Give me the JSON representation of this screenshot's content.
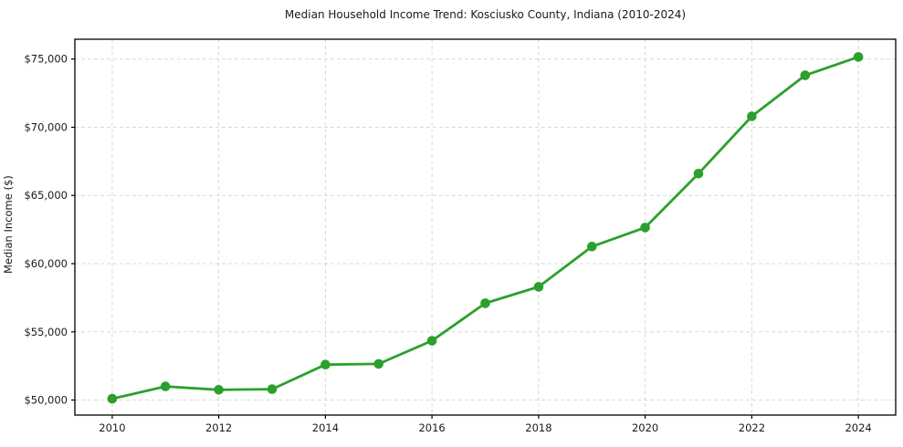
{
  "chart_data": {
    "type": "line",
    "title": "Median Household Income Trend: Kosciusko County, Indiana (2010-2024)",
    "xlabel": "",
    "ylabel": "Median Income ($)",
    "x": [
      2010,
      2011,
      2012,
      2013,
      2014,
      2015,
      2016,
      2017,
      2018,
      2019,
      2020,
      2021,
      2022,
      2023,
      2024
    ],
    "values": [
      50100,
      51000,
      50750,
      50800,
      52600,
      52650,
      54350,
      57100,
      58300,
      61250,
      62650,
      66600,
      70800,
      73800,
      75150
    ],
    "xlim": [
      2009.3,
      2024.7
    ],
    "ylim": [
      48900,
      76450
    ],
    "x_ticks": [
      2010,
      2012,
      2014,
      2016,
      2018,
      2020,
      2022,
      2024
    ],
    "x_tick_labels": [
      "2010",
      "2012",
      "2014",
      "2016",
      "2018",
      "2020",
      "2022",
      "2024"
    ],
    "y_ticks": [
      50000,
      55000,
      60000,
      65000,
      70000,
      75000
    ],
    "y_tick_labels": [
      "$50,000",
      "$55,000",
      "$60,000",
      "$65,000",
      "$70,000",
      "$75,000"
    ],
    "grid": true,
    "legend_position": "none",
    "line_color": "#2ca02c",
    "marker_color": "#2ca02c",
    "grid_color": "#d9d9d9",
    "axis_color": "#000000",
    "text_color": "#1a1a1a",
    "background_color": "#ffffff"
  }
}
